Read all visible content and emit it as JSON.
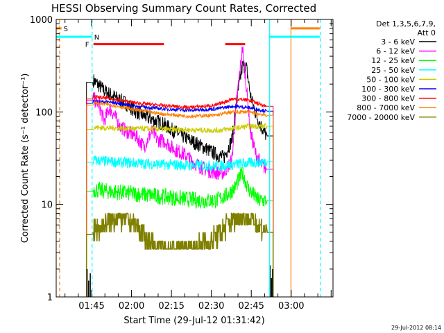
{
  "chart_data": {
    "type": "line",
    "title": "HESSI Observing Summary Count Rates, Corrected",
    "xlabel": "Start Time (29-Jul-12 01:31:42)",
    "ylabel": "Corrected Count Rate (s⁻¹ detector⁻¹)",
    "yscale": "log",
    "ylim": [
      1,
      1000
    ],
    "xlim_minutes": [
      0,
      104
    ],
    "y_tick_labels": [
      "1",
      "10",
      "100",
      "1000"
    ],
    "x_ticks": [
      {
        "label": "01:45",
        "minutes": 13.3
      },
      {
        "label": "02:00",
        "minutes": 28.3
      },
      {
        "label": "02:15",
        "minutes": 43.3
      },
      {
        "label": "02:30",
        "minutes": 58.3
      },
      {
        "label": "02:45",
        "minutes": 73.3
      },
      {
        "label": "03:00",
        "minutes": 88.3
      }
    ],
    "legend": {
      "placement": "right",
      "header": [
        "Det 1,3,5,6,7,9,",
        "Att 0"
      ]
    },
    "series": [
      {
        "name": "3 - 6 keV",
        "color": "#000000",
        "x": [
          14,
          15.5,
          18,
          22,
          26,
          30,
          35,
          40,
          45,
          50,
          55,
          60,
          63,
          66,
          68,
          70,
          71.5,
          73,
          75,
          77,
          79
        ],
        "y": [
          220,
          200,
          170,
          145,
          125,
          100,
          85,
          75,
          60,
          50,
          42,
          35,
          32,
          50,
          140,
          320,
          300,
          150,
          95,
          70,
          55
        ]
      },
      {
        "name": "6 - 12 keV",
        "color": "#ff00ff",
        "x": [
          14,
          16,
          18,
          20,
          22,
          24,
          27,
          30,
          33,
          36,
          38,
          41,
          44,
          48,
          52,
          56,
          60,
          63,
          66,
          68,
          70,
          71.5,
          73,
          75,
          77,
          79
        ],
        "y": [
          140,
          120,
          80,
          110,
          90,
          70,
          60,
          55,
          42,
          62,
          50,
          48,
          40,
          35,
          28,
          24,
          22,
          22,
          30,
          150,
          500,
          180,
          60,
          35,
          27,
          24
        ]
      },
      {
        "name": "12 - 25 keV",
        "color": "#00ff00",
        "x": [
          14,
          18,
          24,
          30,
          36,
          42,
          48,
          54,
          60,
          64,
          67,
          70,
          72,
          76,
          79
        ],
        "y": [
          14.5,
          14,
          13.5,
          13,
          12.5,
          12,
          11.5,
          11,
          11,
          12.5,
          15,
          22,
          15,
          11,
          11
        ]
      },
      {
        "name": "25 - 50 keV",
        "color": "#00ffff",
        "x": [
          14,
          20,
          30,
          40,
          50,
          60,
          66,
          72,
          79
        ],
        "y": [
          30,
          29,
          28,
          27,
          26.5,
          26,
          27,
          28,
          29
        ]
      },
      {
        "name": "50 - 100 keV",
        "color": "#cccc00",
        "x": [
          14,
          20,
          30,
          40,
          50,
          60,
          66,
          72,
          79
        ],
        "y": [
          68,
          67,
          66,
          65,
          64,
          63,
          66,
          70,
          70
        ]
      },
      {
        "name": "100 - 300 keV",
        "color": "#0000ff",
        "x": [
          14,
          20,
          30,
          40,
          50,
          60,
          66,
          72,
          79
        ],
        "y": [
          130,
          128,
          115,
          108,
          104,
          108,
          115,
          112,
          102
        ]
      },
      {
        "name": "300 - 800 keV",
        "color": "#ff0000",
        "x": [
          14,
          20,
          30,
          40,
          50,
          60,
          66,
          72,
          79
        ],
        "y": [
          145,
          140,
          125,
          117,
          112,
          118,
          138,
          135,
          115
        ]
      },
      {
        "name": "800 - 7000 keV",
        "color": "#ff8000",
        "x": [
          14,
          20,
          30,
          40,
          50,
          60,
          66,
          72,
          79
        ],
        "y": [
          125,
          120,
          105,
          95,
          90,
          92,
          100,
          100,
          92
        ]
      },
      {
        "name": "7000 - 20000 keV",
        "color": "#808000",
        "x": [
          14,
          18,
          22,
          26,
          30,
          34,
          38,
          42,
          46,
          50,
          54,
          58,
          62,
          64,
          67,
          70,
          73,
          76,
          79
        ],
        "y": [
          5,
          6,
          7,
          7,
          6,
          4,
          3.3,
          3.3,
          3.3,
          3.3,
          3.5,
          4,
          5,
          6,
          7,
          7.5,
          7,
          6,
          5
        ]
      }
    ],
    "annotations": [
      {
        "label": "S",
        "color": "#ff8000",
        "x_minutes": [
          0,
          2
        ],
        "y": 800
      },
      {
        "label": "N",
        "color": "#00ffff",
        "x_minutes": [
          0,
          13.5
        ],
        "y": 650
      },
      {
        "label": "F",
        "color": "#ff0000",
        "x_minutes": [
          14,
          40.5
        ],
        "y": 540
      },
      {
        "label": "",
        "color": "#ff0000",
        "x_minutes": [
          63.5,
          71
        ],
        "y": 540
      },
      {
        "label": "",
        "color": "#00ffff",
        "x_minutes": [
          80,
          99
        ],
        "y": 650
      },
      {
        "label": "",
        "color": "#ff8000",
        "x_minutes": [
          88.2,
          99
        ],
        "y": 800
      }
    ],
    "vertical_lines": [
      {
        "x_minutes": 1.3,
        "color": "#ff8000",
        "dashed": true
      },
      {
        "x_minutes": 13.5,
        "color": "#00ffff",
        "dashed": true
      },
      {
        "x_minutes": 99.2,
        "color": "#00ffff",
        "dashed": true
      },
      {
        "x_minutes": 80.2,
        "color": "#00ffff",
        "dashed": false
      },
      {
        "x_minutes": 88.2,
        "color": "#ff8000",
        "dashed": false
      }
    ],
    "data_interval_minutes": [
      11.4,
      81.5
    ],
    "footer_date": "29-Jul-2012 08:14"
  }
}
